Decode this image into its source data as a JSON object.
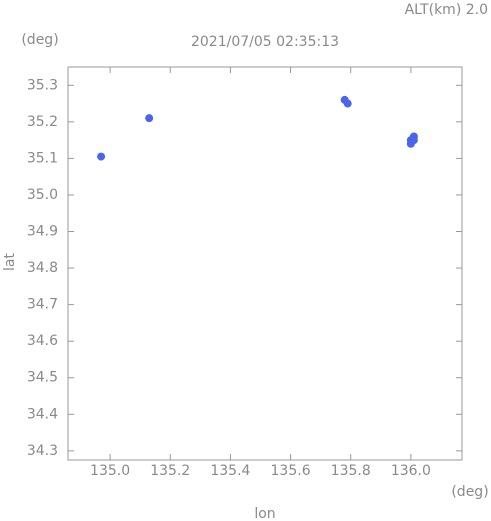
{
  "chart_data": {
    "type": "scatter",
    "title": "2021/07/05 02:35:13",
    "subtitle": "ALT(km) 2.0",
    "x_label": "lon",
    "y_label": "lat",
    "x_unit": "(deg)",
    "y_unit": "(deg)",
    "x": [
      135.13,
      134.97,
      135.78,
      135.79,
      136.0,
      136.01,
      136.0,
      136.01
    ],
    "values": [
      35.21,
      35.105,
      35.26,
      35.25,
      35.15,
      35.16,
      35.14,
      35.15
    ],
    "color": "#4a64ee",
    "xlim": [
      134.86,
      136.17
    ],
    "ylim": [
      34.275,
      35.35
    ],
    "xticks": [
      {
        "value": 135.0,
        "label": "135.0"
      },
      135.2,
      135.4,
      135.6,
      135.8,
      {
        "value": 136.0,
        "label": "136.0"
      }
    ],
    "yticks": [
      34.3,
      34.4,
      34.5,
      34.6,
      34.7,
      34.8,
      34.9,
      {
        "value": 35.0,
        "label": "35.0"
      },
      35.1,
      35.2,
      35.3
    ],
    "grid": false
  }
}
